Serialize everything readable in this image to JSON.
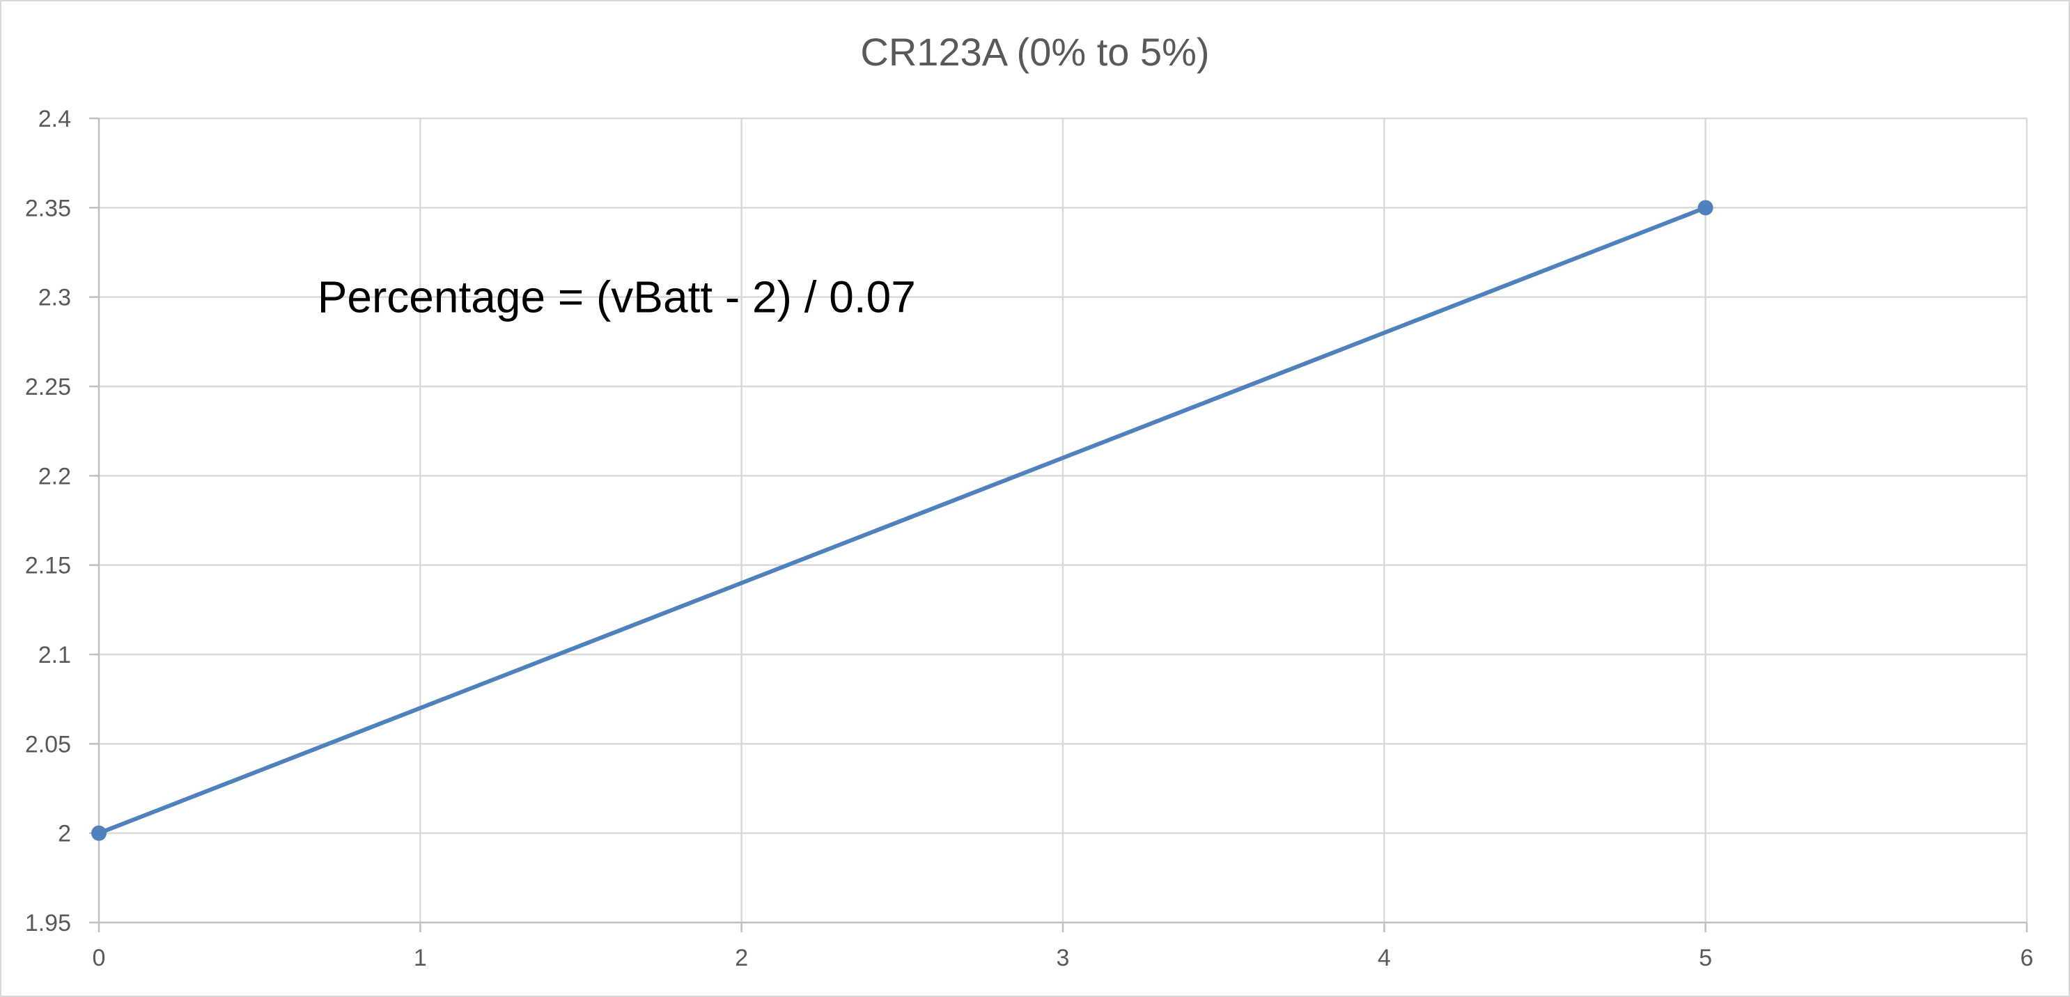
{
  "chart_data": {
    "type": "line",
    "title": "CR123A (0% to 5%)",
    "xlabel": "",
    "ylabel": "",
    "xlim": [
      0,
      6
    ],
    "ylim": [
      1.95,
      2.4
    ],
    "x_ticks": [
      0,
      1,
      2,
      3,
      4,
      5,
      6
    ],
    "y_ticks": [
      1.95,
      2,
      2.05,
      2.1,
      2.15,
      2.2,
      2.25,
      2.3,
      2.35,
      2.4
    ],
    "x_tick_labels": [
      "0",
      "1",
      "2",
      "3",
      "4",
      "5",
      "6"
    ],
    "y_tick_labels": [
      "1.95",
      "2",
      "2.05",
      "2.1",
      "2.15",
      "2.2",
      "2.25",
      "2.3",
      "2.35",
      "2.4"
    ],
    "grid": true,
    "legend": "none",
    "series": [
      {
        "color": "#4f81bd",
        "markers": true,
        "points": [
          {
            "x": 0,
            "y": 2.0
          },
          {
            "x": 5,
            "y": 2.35
          }
        ]
      }
    ],
    "annotations": [
      {
        "text": "Percentage = (vBatt - 2) / 0.07",
        "x": 0.68,
        "y": 2.3
      }
    ]
  }
}
